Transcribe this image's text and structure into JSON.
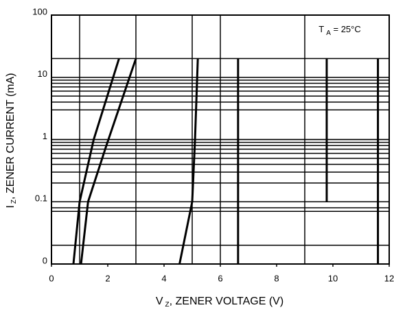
{
  "chart_data": {
    "type": "line",
    "log_y": true,
    "color": "#000000",
    "xlabel": {
      "main": "V",
      "sub": "Z",
      "rest": ", ZENER VOLTAGE (V)"
    },
    "ylabel": {
      "main": "I",
      "sub": "Z",
      "rest": ", ZENER CURRENT (mA)"
    },
    "annotation": {
      "main": "T",
      "sub": "A",
      "rest": " = 25°C"
    },
    "xlim": [
      0,
      12
    ],
    "xticks": [
      0,
      2,
      4,
      6,
      8,
      10,
      12
    ],
    "ylim": [
      0.01,
      100
    ],
    "yticks": [
      {
        "value": 0.01,
        "label": "0"
      },
      0.1,
      1,
      10,
      100
    ],
    "xgrid": [
      1,
      3,
      5,
      6,
      9
    ],
    "ygrid": [
      20,
      10,
      9,
      8,
      7,
      6,
      5,
      4,
      3,
      1,
      0.9,
      0.8,
      0.7,
      0.6,
      0.5,
      0.4,
      0.3,
      0.2,
      0.08,
      0.07,
      0.02
    ],
    "series": [
      {
        "x": [
          0.78,
          1.0,
          1.5,
          2.4
        ],
        "values": [
          0.01,
          0.1,
          1,
          20
        ]
      },
      {
        "x": [
          1.05,
          1.3,
          1.95,
          3.0
        ],
        "values": [
          0.01,
          0.1,
          0.8,
          20
        ]
      },
      {
        "x": [
          4.55,
          5.0,
          5.1,
          5.2
        ],
        "values": [
          0.01,
          0.1,
          1,
          20
        ]
      },
      {
        "x": [
          6.63,
          6.63
        ],
        "values": [
          0.01,
          20
        ]
      },
      {
        "x": [
          9.78,
          9.78
        ],
        "values": [
          0.1,
          20
        ]
      },
      {
        "x": [
          11.6,
          11.6
        ],
        "values": [
          0.01,
          20
        ]
      }
    ]
  }
}
